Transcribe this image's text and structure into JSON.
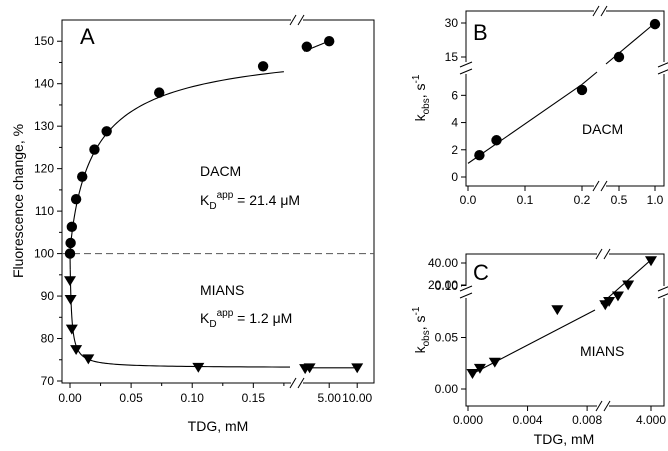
{
  "chart_data": [
    {
      "panel": "A",
      "type": "scatter",
      "xlabel": "TDG, mM",
      "ylabel": "Fluorescence change, %",
      "ylim": [
        70,
        155
      ],
      "y_ticks": [
        "70",
        "80",
        "90",
        "100",
        "110",
        "120",
        "130",
        "140",
        "150"
      ],
      "x_ticks": [
        "0.00",
        "0.05",
        "0.10",
        "0.15",
        "5.00",
        "10.00"
      ],
      "x_axis_broken": true,
      "x_segments": [
        {
          "range": [
            0,
            0.18
          ]
        },
        {
          "range": [
            0.5,
            10.5
          ]
        }
      ],
      "reference_line": {
        "y": 100,
        "style": "dashed"
      },
      "annotations": [
        {
          "text": "DACM"
        },
        {
          "text": "K",
          "sub": "D",
          "sup": "app",
          "value": " = 21.4 μM"
        },
        {
          "text": "MIANS"
        },
        {
          "text": "K",
          "sub": "D",
          "sup": "app",
          "value": " = 1.2 μM"
        }
      ],
      "series": [
        {
          "label": "DACM",
          "marker": "circle",
          "points": [
            [
              0,
              100
            ],
            [
              0.0005,
              102.5
            ],
            [
              0.0015,
              106.3
            ],
            [
              0.005,
              112.8
            ],
            [
              0.01,
              118.1
            ],
            [
              0.02,
              124.5
            ],
            [
              0.03,
              128.8
            ],
            [
              0.073,
              137.9
            ],
            [
              0.158,
              144.1
            ],
            [
              1.0,
              148.7
            ],
            [
              5.0,
              150
            ]
          ]
        },
        {
          "label": "MIANS",
          "marker": "triangle-down",
          "points": [
            [
              0,
              93.6
            ],
            [
              0.0005,
              89.2
            ],
            [
              0.0015,
              82.2
            ],
            [
              0.005,
              77.4
            ],
            [
              0.015,
              75.2
            ],
            [
              0.105,
              73.2
            ],
            [
              0.7,
              72.9
            ],
            [
              1.5,
              73.1
            ],
            [
              10,
              73.1
            ]
          ]
        }
      ]
    },
    {
      "panel": "B",
      "type": "scatter",
      "annotation": "DACM",
      "xlabel": "",
      "ylabel": "k_obs, s-1",
      "ylabel_parts": {
        "main": "k",
        "sub": "obs",
        "unit": ", s",
        "sup": "-1"
      },
      "y_ticks_lower": [
        "0",
        "2",
        "4",
        "6"
      ],
      "y_ticks_upper": [
        "15",
        "30"
      ],
      "x_ticks": [
        "0.0",
        "0.1",
        "0.2",
        "0.5",
        "1.0"
      ],
      "x_axis_broken": true,
      "y_axis_broken": true,
      "points": [
        [
          0.02,
          1.6
        ],
        [
          0.05,
          2.7
        ],
        [
          0.2,
          6.4
        ],
        [
          0.5,
          15
        ],
        [
          1.0,
          29.5
        ]
      ],
      "fit_line": {
        "slope": 29.0,
        "intercept": 1.0
      }
    },
    {
      "panel": "C",
      "type": "scatter",
      "annotation": "MIANS",
      "xlabel": "TDG, mM",
      "ylabel": "k_obs, s-1",
      "ylabel_parts": {
        "main": "k",
        "sub": "obs",
        "unit": ", s",
        "sup": "-1"
      },
      "y_ticks_lower": [
        "0.00",
        "0.05",
        "0.10"
      ],
      "y_ticks_upper": [
        "20.00",
        "40.00"
      ],
      "x_ticks": [
        "0.000",
        "0.004",
        "0.008",
        "4.000"
      ],
      "x_axis_broken": true,
      "y_axis_broken": true,
      "points": [
        [
          0.0003,
          0.015
        ],
        [
          0.0008,
          0.02
        ],
        [
          0.0018,
          0.026
        ],
        [
          0.006,
          0.077
        ],
        [
          0.4,
          2
        ],
        [
          0.7,
          5
        ],
        [
          1.4,
          10
        ],
        [
          2.2,
          20
        ],
        [
          4.0,
          42
        ]
      ],
      "fit_line": {
        "slope": 10.35,
        "intercept": 0.012
      }
    }
  ]
}
